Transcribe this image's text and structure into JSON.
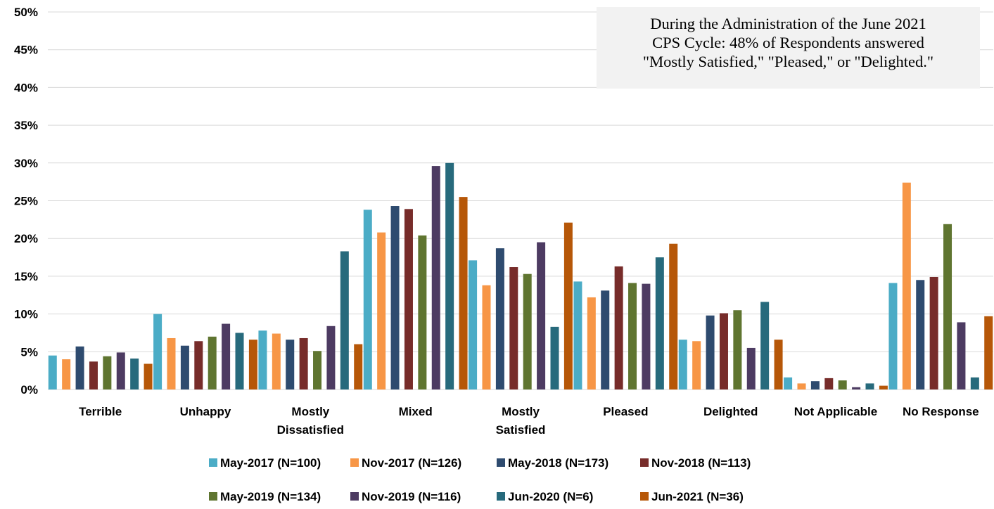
{
  "chart_data": {
    "type": "bar",
    "categories": [
      "Terrible",
      "Unhappy",
      "Mostly Dissatisfied",
      "Mixed",
      "Mostly Satisfied",
      "Pleased",
      "Delighted",
      "Not Applicable",
      "No Response"
    ],
    "category_lines": [
      [
        "Terrible"
      ],
      [
        "Unhappy"
      ],
      [
        "Mostly",
        "Dissatisfied"
      ],
      [
        "Mixed"
      ],
      [
        "Mostly",
        "Satisfied"
      ],
      [
        "Pleased"
      ],
      [
        "Delighted"
      ],
      [
        "Not Applicable"
      ],
      [
        "No Response"
      ]
    ],
    "y_ticks": [
      "0%",
      "5%",
      "10%",
      "15%",
      "20%",
      "25%",
      "30%",
      "35%",
      "40%",
      "45%",
      "50%"
    ],
    "ylim": [
      0,
      50
    ],
    "y_unit": "%",
    "grid": true,
    "legend_position": "bottom",
    "series": [
      {
        "name": "May-2017 (N=100)",
        "color": "#4bacc6",
        "values": [
          4.5,
          10.0,
          7.8,
          23.8,
          17.1,
          14.3,
          6.6,
          1.6,
          14.1
        ]
      },
      {
        "name": "Nov-2017 (N=126)",
        "color": "#f79646",
        "values": [
          4.0,
          6.8,
          7.4,
          20.8,
          13.8,
          12.2,
          6.4,
          0.8,
          27.4
        ]
      },
      {
        "name": "May-2018 (N=173)",
        "color": "#2e4b6f",
        "values": [
          5.7,
          5.8,
          6.6,
          24.3,
          18.7,
          13.1,
          9.8,
          1.1,
          14.5
        ]
      },
      {
        "name": "Nov-2018 (N=113)",
        "color": "#772c2a",
        "values": [
          3.7,
          6.4,
          6.8,
          23.9,
          16.2,
          16.3,
          10.1,
          1.5,
          14.9
        ]
      },
      {
        "name": "May-2019 (N=134)",
        "color": "#5f7530",
        "values": [
          4.4,
          7.0,
          5.1,
          20.4,
          15.3,
          14.1,
          10.5,
          1.2,
          21.9
        ]
      },
      {
        "name": "Nov-2019 (N=116)",
        "color": "#4d3b62",
        "values": [
          4.9,
          8.7,
          8.4,
          29.6,
          19.5,
          14.0,
          5.5,
          0.3,
          8.9
        ]
      },
      {
        "name": "Jun-2020 (N=6)",
        "color": "#276a7c",
        "values": [
          4.1,
          7.5,
          18.3,
          30.0,
          8.3,
          17.5,
          11.6,
          0.8,
          1.6
        ]
      },
      {
        "name": "Jun-2021 (N=36)",
        "color": "#b65708",
        "values": [
          3.4,
          6.6,
          6.0,
          25.5,
          22.1,
          19.3,
          6.6,
          0.5,
          9.7
        ]
      }
    ]
  },
  "annotation": {
    "lines": [
      "During the Administration of the June 2021",
      "CPS Cycle: 48% of Respondents answered",
      "\"Mostly Satisfied,\" \"Pleased,\" or \"Delighted.\""
    ]
  }
}
